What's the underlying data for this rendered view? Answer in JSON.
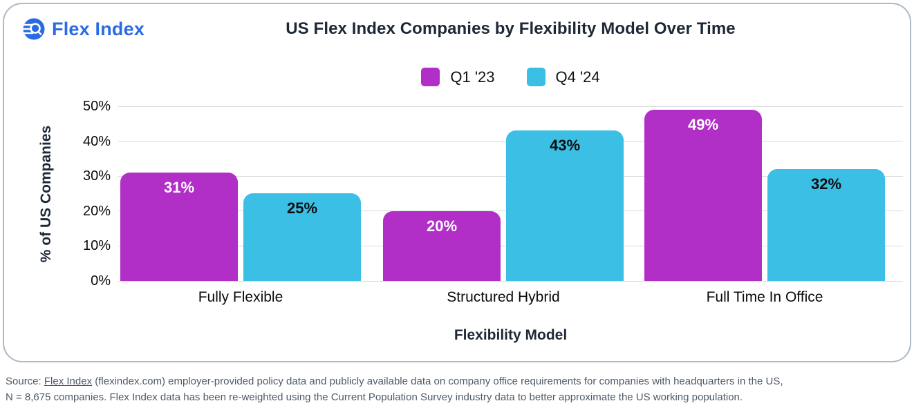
{
  "logo": {
    "text": "Flex Index"
  },
  "chart_data": {
    "type": "bar",
    "title": "US Flex Index Companies by Flexibility Model Over Time",
    "categories": [
      "Fully Flexible",
      "Structured Hybrid",
      "Full Time In Office"
    ],
    "series": [
      {
        "name": "Q1 '23",
        "color": "#b12ec7",
        "label_color": "#ffffff",
        "values": [
          31,
          20,
          49
        ]
      },
      {
        "name": "Q4 '24",
        "color": "#3bbfe5",
        "label_color": "#0d0d0d",
        "values": [
          25,
          43,
          32
        ]
      }
    ],
    "value_suffix": "%",
    "xlabel": "Flexibility Model",
    "ylabel": "% of US Companies",
    "ylim": [
      0,
      50
    ],
    "yticks": [
      "0%",
      "10%",
      "20%",
      "30%",
      "40%",
      "50%"
    ],
    "grid": true,
    "legend_position": "top",
    "bar_value_labels": "inside-top"
  },
  "source": {
    "prefix": "Source:",
    "link_text": "Flex Index",
    "line1_rest": "(flexindex.com) employer-provided policy data and publicly available data on company office requirements for companies with headquarters in the US,",
    "line2": "N = 8,675 companies. Flex Index data has been re-weighted using the Current Population Survey industry data to better approximate the US working population."
  },
  "colors": {
    "accent_blue": "#2a6ae3",
    "title_navy": "#1d2836",
    "gridline": "#d6d9dd",
    "card_border": "#afb9c6",
    "source_text": "#4e5a68"
  }
}
